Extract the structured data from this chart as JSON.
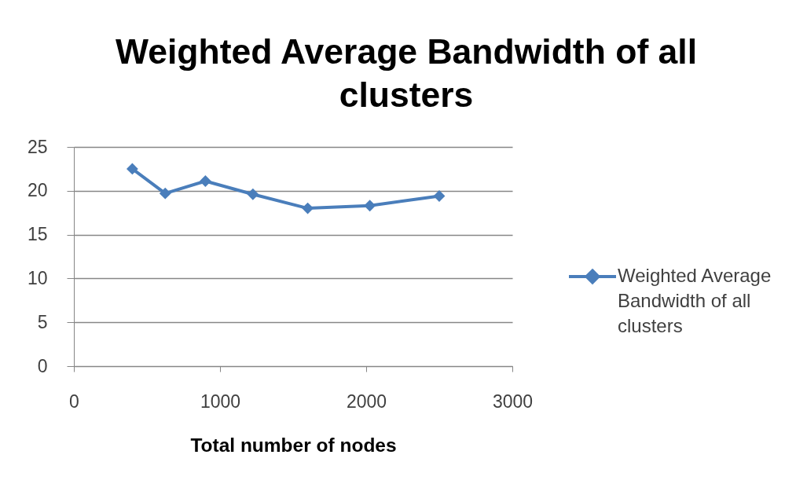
{
  "chart_data": {
    "type": "line",
    "title": "Weighted Average Bandwidth of all clusters",
    "xlabel": "Total number of nodes",
    "x": [
      400,
      625,
      900,
      1225,
      1600,
      2025,
      2500
    ],
    "series": [
      {
        "name": "Weighted Average Bandwidth of all clusters",
        "color": "#4a7ebb",
        "values": [
          22.5,
          19.7,
          21.1,
          19.6,
          18.0,
          18.3,
          19.4
        ]
      }
    ],
    "xlim": [
      0,
      3000
    ],
    "xticks": [
      0,
      1000,
      2000,
      3000
    ],
    "ylim": [
      0,
      25
    ],
    "yticks": [
      0,
      5,
      10,
      15,
      20,
      25
    ],
    "grid": "y",
    "legend": "right",
    "marker": "diamond",
    "line_style": "solid"
  }
}
